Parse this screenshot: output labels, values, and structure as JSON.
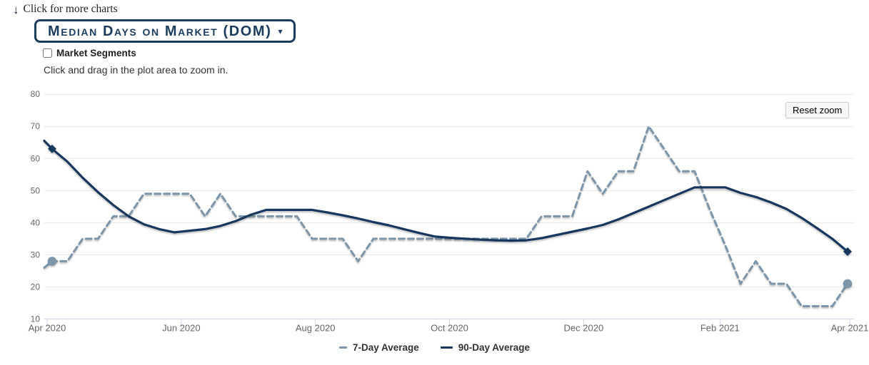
{
  "page": {
    "more_charts": {
      "label": "Click for more charts",
      "arrow_icon": "↓"
    },
    "chart_selector": {
      "title": "Median Days on Market (DOM)",
      "caret_icon": "▾"
    },
    "market_segments": {
      "label": "Market Segments",
      "checked": false
    },
    "instruction": "Click and drag in the plot area to zoom in.",
    "reset_zoom_label": "Reset zoom"
  },
  "chart_data": {
    "type": "line",
    "title": "Median Days on Market (DOM)",
    "x_unit": "weekly points, Apr 2020 – Apr 2021",
    "x_tick_labels": [
      "Apr 2020",
      "Jun 2020",
      "Aug 2020",
      "Oct 2020",
      "Dec 2020",
      "Feb 2021",
      "Apr 2021"
    ],
    "x_tick_day_offsets": [
      0,
      61,
      122,
      183,
      244,
      306,
      365
    ],
    "x_total_days": 365,
    "y_ticks": [
      10,
      20,
      30,
      40,
      50,
      60,
      70,
      80
    ],
    "y_range": [
      10,
      80
    ],
    "grid": true,
    "legend_position": "bottom",
    "colors": {
      "grid": "#e6e6e6",
      "axis": "#ccd6eb",
      "tick_label": "#666666",
      "legend_text": "#333333"
    },
    "series": [
      {
        "name": "7-Day Average",
        "color": "#7d95a8",
        "dash": "dashed",
        "marker": "circle",
        "lead_in": 26,
        "values": [
          28,
          28,
          35,
          35,
          42,
          42,
          49,
          49,
          49,
          49,
          42,
          49,
          42,
          42,
          42,
          42,
          42,
          35,
          35,
          35,
          28,
          35,
          35,
          35,
          35,
          35,
          35,
          35,
          35,
          35,
          35,
          35,
          42,
          42,
          42,
          56,
          49,
          56,
          56,
          70,
          63,
          56,
          56,
          44,
          33,
          21,
          28,
          21,
          21,
          14,
          14,
          14,
          21
        ]
      },
      {
        "name": "90-Day Average",
        "color": "#17375e",
        "dash": "solid",
        "marker": "diamond",
        "lead_in": 65.5,
        "values": [
          63,
          59,
          54,
          49.5,
          45.5,
          42,
          39.5,
          38,
          37,
          37.5,
          38,
          39,
          40.5,
          42.5,
          44,
          44,
          44,
          44,
          43.2,
          42.3,
          41.3,
          40.2,
          39.2,
          38,
          36.8,
          35.7,
          35.3,
          35,
          34.7,
          34.5,
          34.4,
          34.5,
          35.2,
          36.2,
          37.2,
          38.2,
          39.3,
          41,
          43,
          45,
          47,
          49,
          51,
          51,
          51,
          49.3,
          48,
          46.3,
          44.3,
          41.5,
          38.3,
          35,
          31
        ]
      }
    ]
  }
}
